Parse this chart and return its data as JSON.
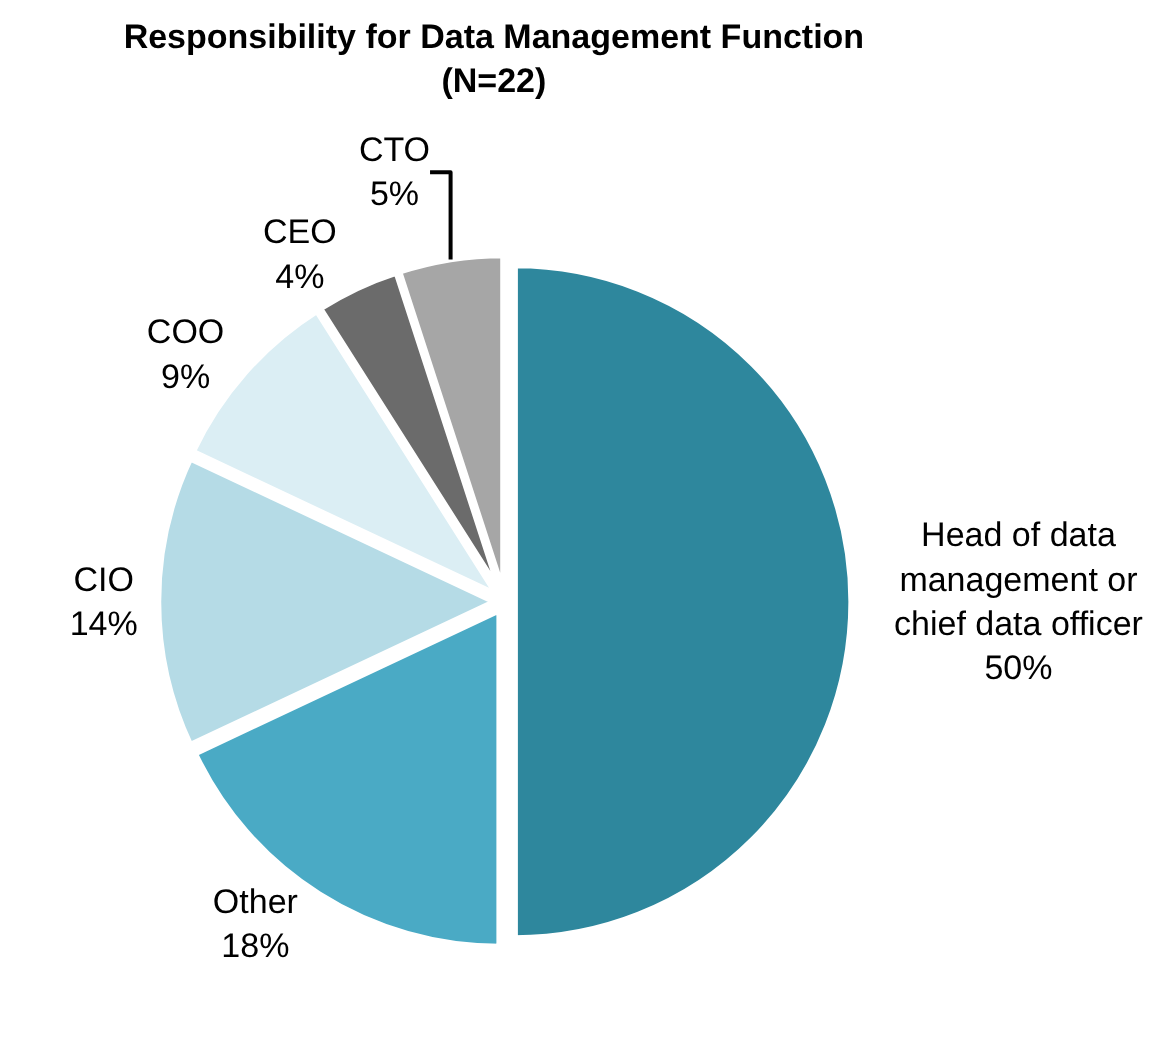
{
  "chart_data": {
    "type": "pie",
    "title": "Responsibility for Data Management Function",
    "subtitle": "(N=22)",
    "categories": [
      "Head of data management or chief data officer",
      "Other",
      "CIO",
      "COO",
      "CEO",
      "CTO"
    ],
    "values": [
      50,
      18,
      14,
      9,
      4,
      5
    ],
    "value_labels": [
      "50%",
      "18%",
      "14%",
      "9%",
      "4%",
      "5%"
    ],
    "colors": [
      "#2e879d",
      "#4aaac5",
      "#b5dbe6",
      "#dbeef4",
      "#6b6b6b",
      "#a6a6a6"
    ],
    "legend": false
  }
}
